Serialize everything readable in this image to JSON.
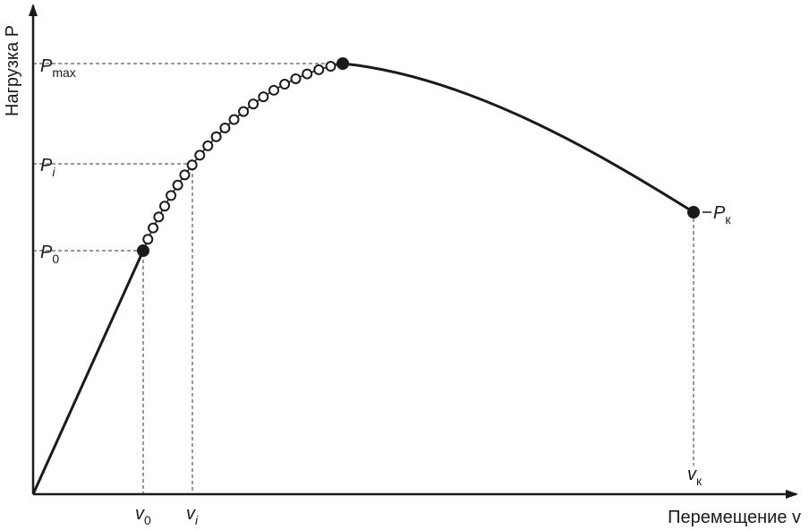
{
  "axes": {
    "y_label": "Нагрузка P",
    "x_label": "Перемещение v"
  },
  "load_labels": {
    "p_max": {
      "symbol": "P",
      "sub": "max"
    },
    "p_i": {
      "symbol": "P",
      "sub": "i"
    },
    "p_0": {
      "symbol": "P",
      "sub": "0"
    },
    "p_k": {
      "symbol": "P",
      "sub": "к"
    }
  },
  "displacement_labels": {
    "v_0": {
      "symbol": "v",
      "sub": "0"
    },
    "v_i": {
      "symbol": "v",
      "sub": "i"
    },
    "v_k": {
      "symbol": "v",
      "sub": "к"
    }
  }
}
